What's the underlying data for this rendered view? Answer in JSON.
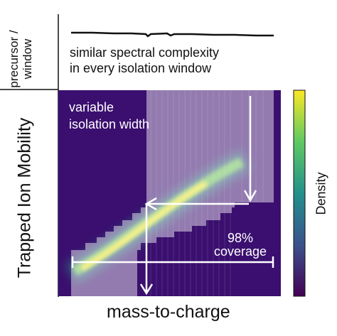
{
  "labels": {
    "top_axis": "precursor /\nwindow",
    "top_axis_line1": "precursor /",
    "top_axis_line2": "window",
    "caption_line1": "similar spectral complexity",
    "caption_line2": "in every isolation window",
    "y_axis": "Trapped Ion Mobility",
    "x_axis": "mass-to-charge",
    "colorbar": "Density",
    "annotation_line1": "variable",
    "annotation_line2": "isolation width",
    "coverage_value": "98%",
    "coverage_label": "coverage"
  },
  "colors": {
    "background": "#3b0f6f",
    "colormap": [
      "#440154",
      "#3b528b",
      "#21918c",
      "#5ec962",
      "#fde725"
    ],
    "overlay": "#ffffff"
  }
}
